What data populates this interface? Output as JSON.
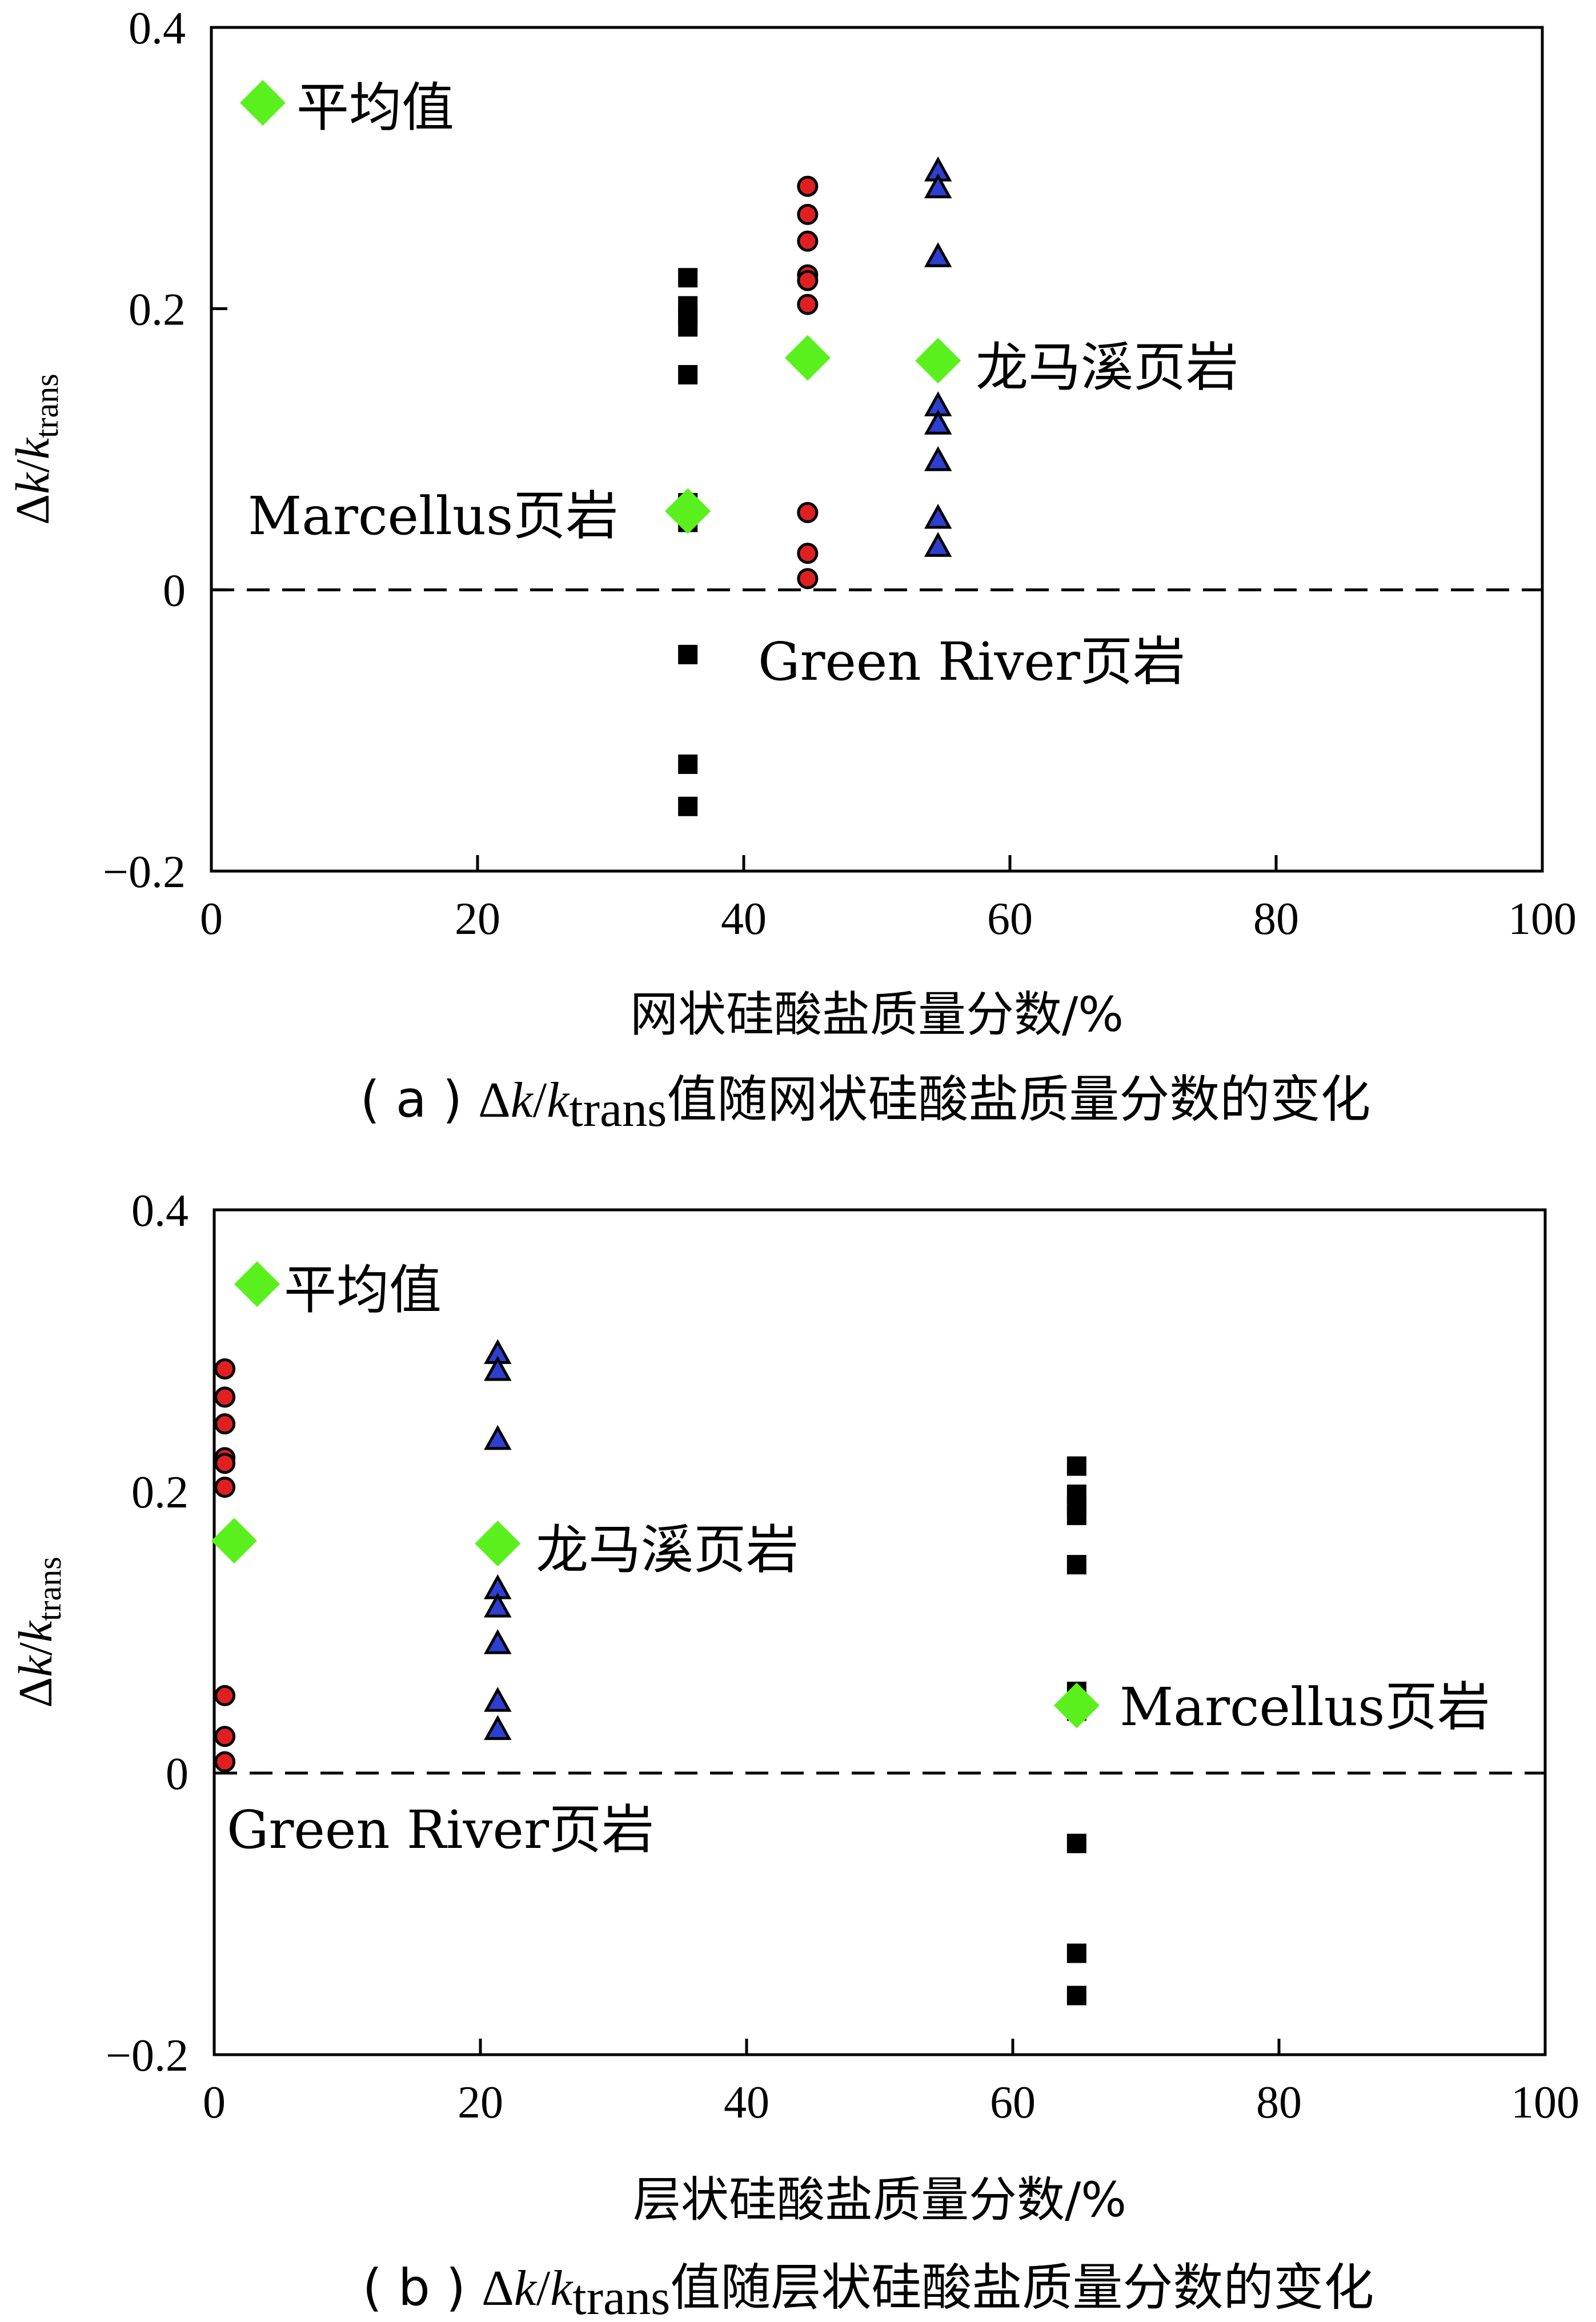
{
  "chart_data": [
    {
      "type": "scatter",
      "panel": "a",
      "xlabel": "网状硅酸盐质量分数/%",
      "ylabel": {
        "delta": "Δ",
        "k": "k",
        "slash": "/",
        "k2": "k",
        "sub": "trans"
      },
      "xlim": [
        0,
        100
      ],
      "ylim": [
        -0.2,
        0.4
      ],
      "xticks": [
        "0",
        "20",
        "40",
        "60",
        "80",
        "100"
      ],
      "yticks": [
        "0.4",
        "0.2",
        "0",
        "−0.2"
      ],
      "legend": "平均值",
      "caption": {
        "prefix": "( a )  ",
        "delta": "Δ",
        "k": "k",
        "slash": "/",
        "k2": "k",
        "sub": "trans",
        "suffix": "值随网状硅酸盐质量分数的变化"
      },
      "groups": [
        {
          "label": "Marcellus页岩",
          "marker": "square",
          "color": "#000000",
          "x": 35.8,
          "y": [
            0.222,
            0.202,
            0.195,
            0.187,
            0.153,
            0.062,
            0.048,
            -0.046,
            -0.124,
            -0.154
          ],
          "mean": 0.056
        },
        {
          "label": "Green River页岩",
          "marker": "circle",
          "color": "#e02020",
          "x": 44.8,
          "y": [
            0.287,
            0.267,
            0.248,
            0.224,
            0.22,
            0.203,
            0.055,
            0.026,
            0.008
          ],
          "mean": 0.165
        },
        {
          "label": "龙马溪页岩",
          "marker": "triangle",
          "color": "#2d3fd0",
          "x": 54.6,
          "y": [
            0.298,
            0.286,
            0.237,
            0.131,
            0.118,
            0.092,
            0.051,
            0.031
          ],
          "mean": 0.163
        }
      ]
    },
    {
      "type": "scatter",
      "panel": "b",
      "xlabel": "层状硅酸盐质量分数/%",
      "ylabel": {
        "delta": "Δ",
        "k": "k",
        "slash": "/",
        "k2": "k",
        "sub": "trans"
      },
      "xlim": [
        0,
        100
      ],
      "ylim": [
        -0.2,
        0.4
      ],
      "xticks": [
        "0",
        "20",
        "40",
        "60",
        "80",
        "100"
      ],
      "yticks": [
        "0.4",
        "0.2",
        "0",
        "−0.2"
      ],
      "legend": "平均值",
      "caption": {
        "prefix": "( b ) ",
        "delta": "Δ",
        "k": "k",
        "slash": "/",
        "k2": "k",
        "sub": "trans",
        "suffix": "值随层状硅酸盐质量分数的变化"
      },
      "groups": [
        {
          "label": "Green River页岩",
          "marker": "circle",
          "color": "#e02020",
          "x": 0.8,
          "y": [
            0.287,
            0.267,
            0.248,
            0.224,
            0.22,
            0.203,
            0.055,
            0.026,
            0.008
          ],
          "mean": 0.165,
          "mean_x": 1.5
        },
        {
          "label": "龙马溪页岩",
          "marker": "triangle",
          "color": "#2d3fd0",
          "x": 21.3,
          "y": [
            0.298,
            0.286,
            0.237,
            0.131,
            0.118,
            0.092,
            0.051,
            0.031
          ],
          "mean": 0.163
        },
        {
          "label": "Marcellus页岩",
          "marker": "square",
          "color": "#000000",
          "x": 64.8,
          "y": [
            0.218,
            0.198,
            0.19,
            0.183,
            0.148,
            0.058,
            0.044,
            -0.05,
            -0.128,
            -0.158
          ],
          "mean": 0.048
        }
      ]
    }
  ]
}
